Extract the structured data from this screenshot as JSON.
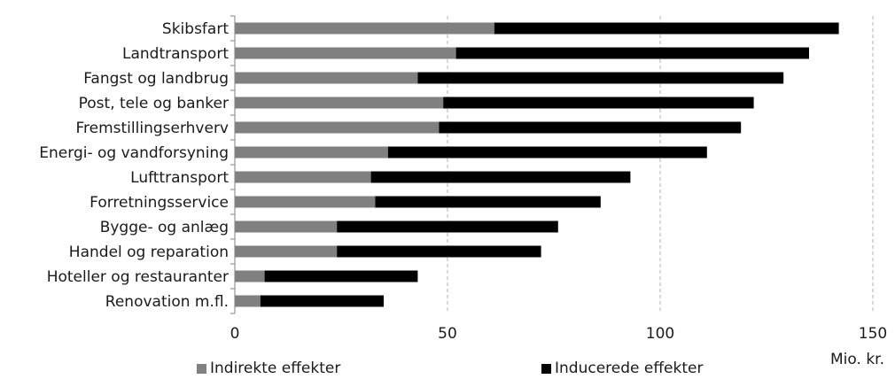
{
  "chart_data": {
    "type": "bar",
    "orientation": "horizontal",
    "stacked": true,
    "categories": [
      "Skibsfart",
      "Landtransport",
      "Fangst og landbrug",
      "Post, tele og banker",
      "Fremstillingserhverv",
      "Energi- og vandforsyning",
      "Lufttransport",
      "Forretningsservice",
      "Bygge- og anlæg",
      "Handel og reparation",
      "Hoteller og restauranter",
      "Renovation m.fl."
    ],
    "series": [
      {
        "name": "Indirekte effekter",
        "color": "#808080",
        "values": [
          61,
          52,
          43,
          49,
          48,
          36,
          32,
          33,
          24,
          24,
          7,
          6
        ]
      },
      {
        "name": "Inducerede effekter",
        "color": "#000000",
        "values": [
          81,
          83,
          86,
          73,
          71,
          75,
          61,
          53,
          52,
          48,
          36,
          29
        ]
      }
    ],
    "xlim": [
      0,
      150
    ],
    "xticks": [
      "0",
      "50",
      "100",
      "150"
    ],
    "xlabel": "Mio. kr.",
    "grid": "vertical dashed",
    "legend_position": "bottom"
  }
}
